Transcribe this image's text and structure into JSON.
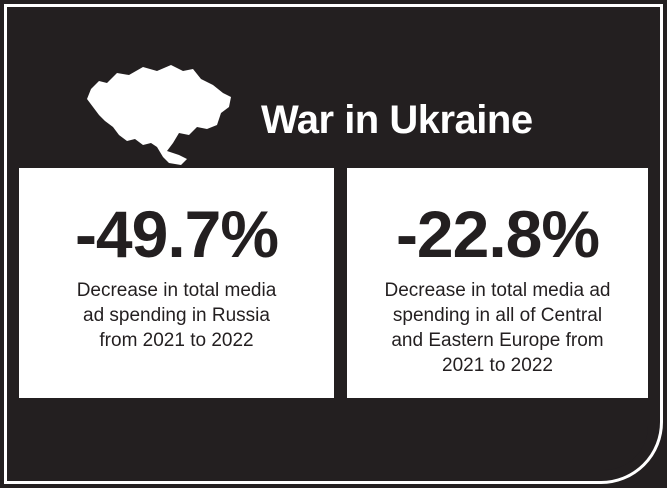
{
  "header": {
    "title": "War in Ukraine",
    "map_icon": "ukraine-map-icon"
  },
  "stats": [
    {
      "value": "-49.7%",
      "description_lines": [
        "Decrease in total media",
        "ad spending in Russia",
        "from 2021 to 2022"
      ]
    },
    {
      "value": "-22.8%",
      "description_lines": [
        "Decrease in total media ad",
        "spending in all of Central",
        "and Eastern Europe from",
        "2021 to 2022"
      ]
    }
  ],
  "colors": {
    "background": "#231f20",
    "panel": "#ffffff",
    "text_dark": "#231f20",
    "text_light": "#ffffff"
  }
}
